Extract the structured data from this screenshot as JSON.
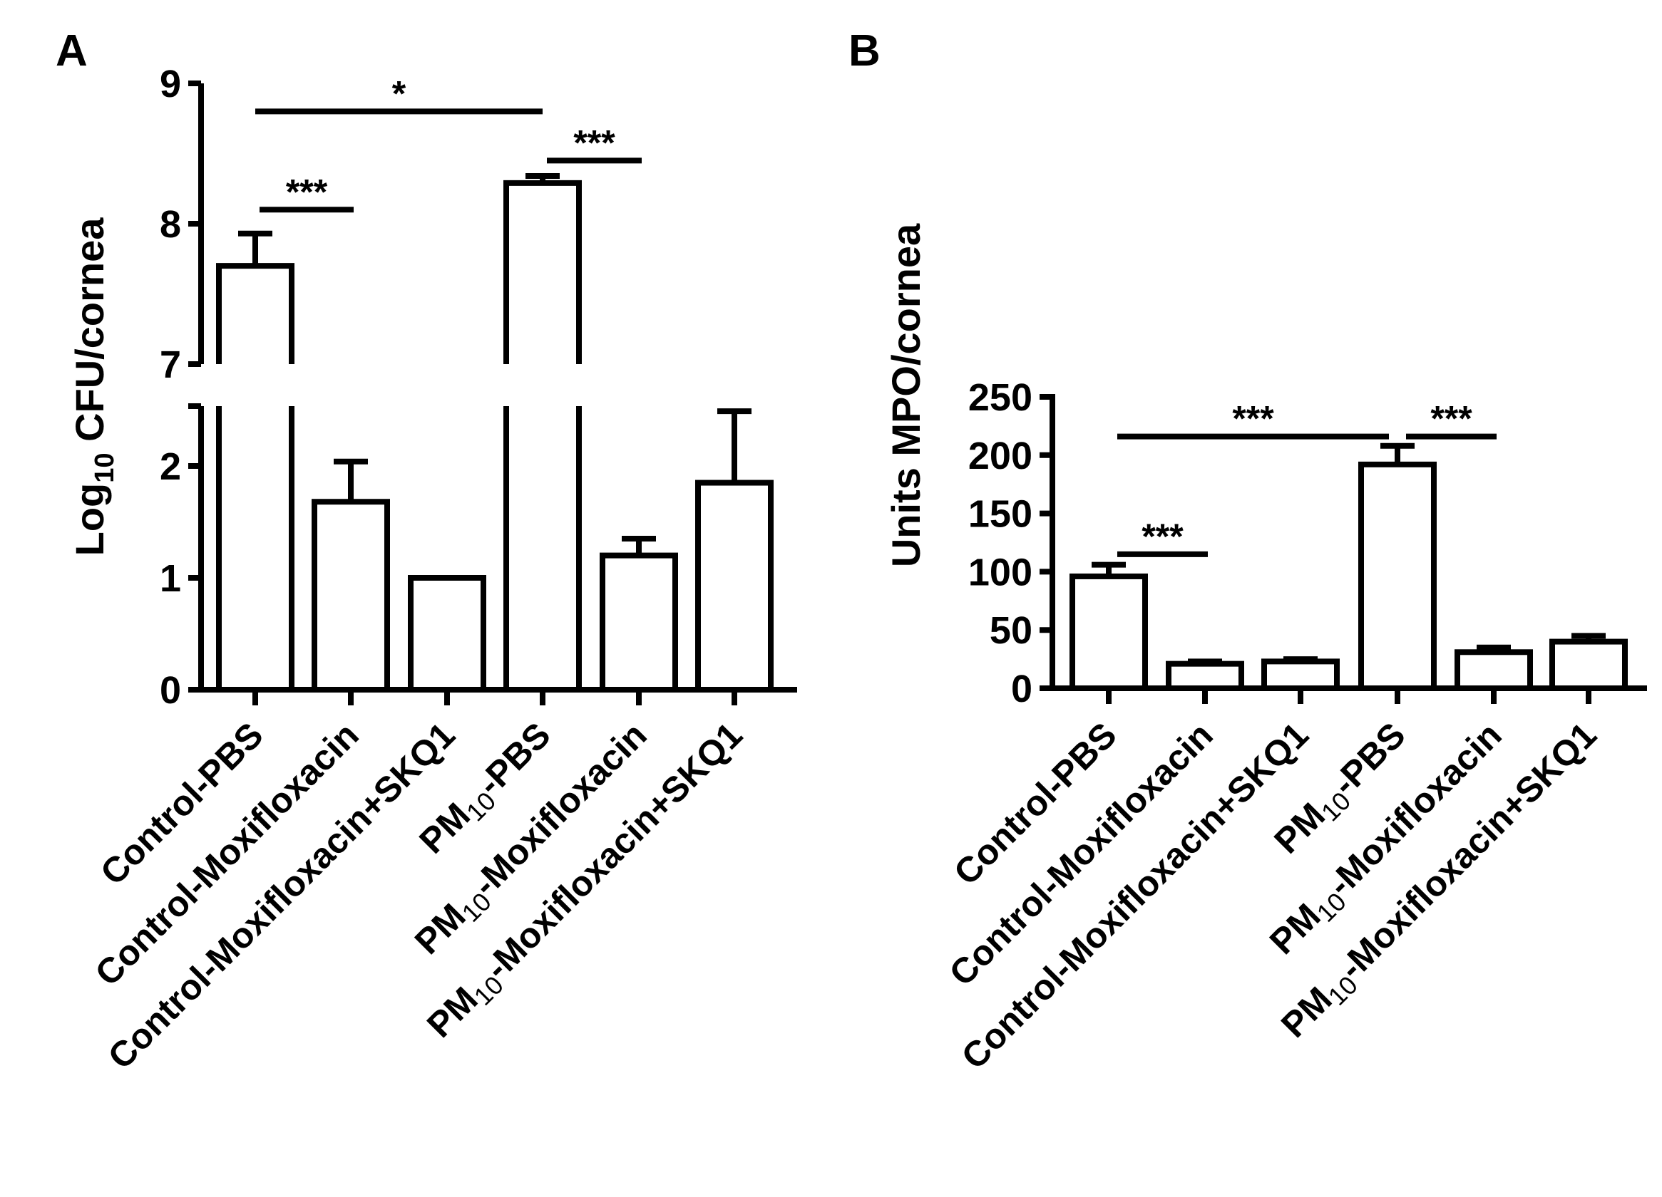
{
  "chart_data": [
    {
      "panel": "A",
      "type": "bar",
      "ylabel": "Log10 CFU/cornea",
      "ylabel_parts": [
        "Log",
        "10",
        " CFU/cornea"
      ],
      "yaxis_broken": true,
      "lower_segment": {
        "range": [
          0,
          2.5
        ],
        "ticks": [
          "0",
          "1",
          "2"
        ],
        "tick_values": [
          0,
          1,
          2
        ]
      },
      "upper_segment": {
        "range": [
          7,
          9
        ],
        "ticks": [
          "7",
          "8",
          "9"
        ],
        "tick_values": [
          7,
          8,
          9
        ]
      },
      "categories": [
        {
          "label": "Control-PBS",
          "pre": "Control-PBS",
          "sub": "",
          "post": ""
        },
        {
          "label": "Control-Moxifloxacin",
          "pre": "Control-Moxifloxacin",
          "sub": "",
          "post": ""
        },
        {
          "label": "Control-Moxifloxacin+SKQ1",
          "pre": "Control-Moxifloxacin+SKQ1",
          "sub": "",
          "post": ""
        },
        {
          "label": "PM10-PBS",
          "pre": "PM",
          "sub": "10",
          "post": "-PBS"
        },
        {
          "label": "PM10-Moxifloxacin",
          "pre": "PM",
          "sub": "10",
          "post": "-Moxifloxacin"
        },
        {
          "label": "PM10-Moxifloxacin+SKQ1",
          "pre": "PM",
          "sub": "10",
          "post": "-Moxifloxacin+SKQ1"
        }
      ],
      "values": [
        7.7,
        1.68,
        1.0,
        8.29,
        1.2,
        1.85
      ],
      "errors": [
        0.23,
        0.36,
        0.0,
        0.05,
        0.15,
        0.64
      ],
      "significance": [
        {
          "from": 0,
          "to": 1,
          "label": "***",
          "y": 8.1
        },
        {
          "from": 0,
          "to": 3,
          "label": "*",
          "y": 8.8
        },
        {
          "from": 3,
          "to": 4,
          "label": "***",
          "y": 8.45
        }
      ]
    },
    {
      "panel": "B",
      "type": "bar",
      "ylabel": "Units MPO/cornea",
      "ylim": [
        0,
        250
      ],
      "ticks": [
        "0",
        "50",
        "100",
        "150",
        "200",
        "250"
      ],
      "tick_values": [
        0,
        50,
        100,
        150,
        200,
        250
      ],
      "categories": [
        {
          "label": "Control-PBS",
          "pre": "Control-PBS",
          "sub": "",
          "post": ""
        },
        {
          "label": "Control-Moxifloxacin",
          "pre": "Control-Moxifloxacin",
          "sub": "",
          "post": ""
        },
        {
          "label": "Control-Moxifloxacin+SKQ1",
          "pre": "Control-Moxifloxacin+SKQ1",
          "sub": "",
          "post": ""
        },
        {
          "label": "PM10-PBS",
          "pre": "PM",
          "sub": "10",
          "post": "-PBS"
        },
        {
          "label": "PM10-Moxifloxacin",
          "pre": "PM",
          "sub": "10",
          "post": "-Moxifloxacin"
        },
        {
          "label": "PM10-Moxifloxacin+SKQ1",
          "pre": "PM",
          "sub": "10",
          "post": "-Moxifloxacin+SKQ1"
        }
      ],
      "values": [
        96,
        21,
        23,
        192,
        31,
        40
      ],
      "errors": [
        10,
        2,
        2,
        16,
        4,
        5
      ],
      "significance": [
        {
          "from": 0,
          "to": 1,
          "label": "***",
          "y": 115
        },
        {
          "from": 0,
          "to": 3,
          "label": "***",
          "y": 216
        },
        {
          "from": 3,
          "to": 4,
          "label": "***",
          "y": 216
        }
      ]
    }
  ]
}
